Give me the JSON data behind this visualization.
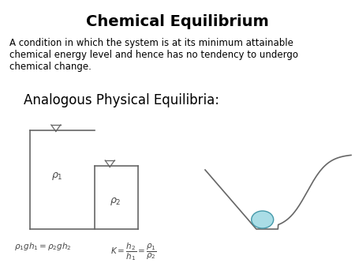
{
  "title": "Chemical Equilibrium",
  "title_fontsize": 14,
  "body_text": "A condition in which the system is at its minimum attainable\nchemical energy level and hence has no tendency to undergo\nchemical change.",
  "body_fontsize": 8.5,
  "subtitle": "Analogous Physical Equilibria:",
  "subtitle_fontsize": 12,
  "background_color": "#ffffff",
  "text_color": "#000000",
  "diagram_color": "#666666",
  "ball_color": "#aadde6",
  "ball_edge_color": "#4499aa"
}
